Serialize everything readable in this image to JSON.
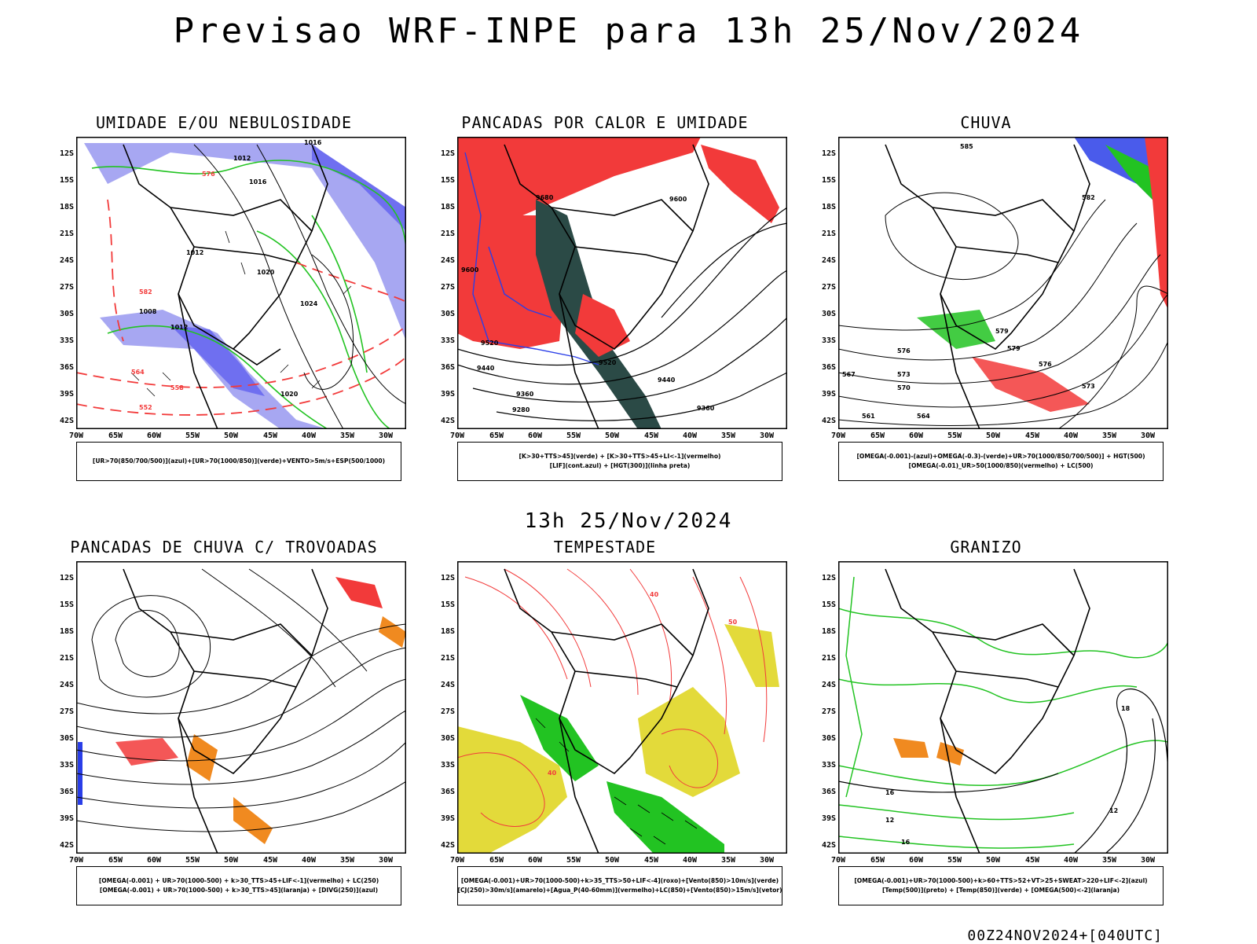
{
  "title": "Previsao WRF-INPE  para 13h 25/Nov/2024",
  "subtitle": "13h 25/Nov/2024",
  "footer": "00Z24NOV2024+[040UTC]",
  "lat_labels": [
    "12S",
    "15S",
    "18S",
    "21S",
    "24S",
    "27S",
    "30S",
    "33S",
    "36S",
    "39S",
    "42S"
  ],
  "lon_labels": [
    "70W",
    "65W",
    "60W",
    "55W",
    "50W",
    "45W",
    "40W",
    "35W",
    "30W"
  ],
  "panels": [
    {
      "title": "UMIDADE E/OU NEBULOSIDADE",
      "legend": [
        "[UR>70(850/700/500)](azul)+[UR>70(1000/850)](verde)+VENTO>5m/s+ESP(500/1000)"
      ],
      "contour_labels": [
        "1016",
        "1012",
        "1016",
        "1012",
        "1020",
        "1008",
        "1024",
        "1020",
        "1012",
        "576",
        "582",
        "564",
        "558",
        "552"
      ]
    },
    {
      "title": "PANCADAS POR CALOR E UMIDADE",
      "legend": [
        "[K>30+TTS>45](verde) + [K>30+TTS>45+LI<-1](vermelho)",
        "[LIF](cont.azul) + [HGT(300)](linha preta)"
      ],
      "contour_labels": [
        "9680",
        "9600",
        "9520",
        "9440",
        "9360",
        "9280",
        "9600",
        "9520",
        "9440",
        "9360"
      ]
    },
    {
      "title": "CHUVA",
      "legend": [
        "[OMEGA(-0.001)-(azul)+OMEGA(-0.3)-(verde)+UR>70(1000/850/700/500)] + HGT(500)",
        "[OMEGA(-0.01)_UR>50(1000/850)(vermelho) + LC(500)"
      ],
      "contour_labels": [
        "585",
        "582",
        "579",
        "576",
        "573",
        "570",
        "567",
        "564",
        "561",
        "573",
        "576",
        "579"
      ]
    },
    {
      "title": "PANCADAS DE CHUVA C/ TROVOADAS",
      "legend": [
        "[OMEGA(-0.001) + UR>70(1000-500) + k>30_TTS>45+LIF<-1](vermelho) + LC(250)",
        "[OMEGA(-0.001) + UR>70(1000-500) + k>30_TTS>45](laranja) + [DIVG(250)](azul)"
      ],
      "contour_labels": []
    },
    {
      "title": "TEMPESTADE",
      "legend": [
        "[OMEGA(-0.001)+UR>70(1000-500)+k>35_TTS>50+LIF<-4](roxo)+[Vento(850)>10m/s](verde)",
        "[CJ(250)>30m/s](amarelo)+[Agua_P(40-60mm)](vermelho)+LC(850)+[Vento(850)>15m/s](vetor)"
      ],
      "contour_labels": [
        "40",
        "50",
        "40"
      ]
    },
    {
      "title": "GRANIZO",
      "legend": [
        "[OMEGA(-0.001)+UR>70(1000-500)+k>60+TTS>52+VT>25+SWEAT>220+LIF<-2](azul)",
        "[Temp(500)](preto) + [Temp(850)](verde) + [OMEGA(500)<-2](laranja)"
      ],
      "contour_labels": [
        "16",
        "12",
        "16",
        "12",
        "18"
      ]
    }
  ],
  "colors": {
    "black": "#000000",
    "red": "#f23a3a",
    "green": "#22c322",
    "blue": "#2a3ee8",
    "lightblue": "#a7a7f2",
    "darkteal": "#2b4a46",
    "yellow": "#e3da3a",
    "orange": "#f08a20"
  }
}
